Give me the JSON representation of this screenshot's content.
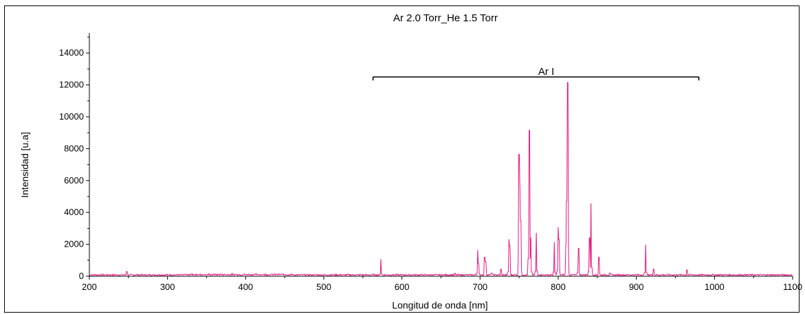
{
  "chart_data": {
    "type": "line",
    "title": "Ar 2.0 Torr_He 1.5 Torr",
    "xlabel": "Longitud de onda [nm]",
    "ylabel": "Intensidad [u.a]",
    "xlim": [
      200,
      1100
    ],
    "ylim": [
      0,
      15000
    ],
    "x_ticks": [
      200,
      300,
      400,
      500,
      600,
      700,
      800,
      900,
      1000,
      1100
    ],
    "y_ticks": [
      0,
      2000,
      4000,
      6000,
      8000,
      10000,
      12000,
      14000
    ],
    "grid": false,
    "line_color": "#e8177f",
    "annotation": {
      "text": "Ar I",
      "x_start": 563,
      "x_end": 980,
      "y": 12500
    },
    "series": [
      {
        "peaks": [
          {
            "x": 248,
            "y": 300
          },
          {
            "x": 573,
            "y": 1050
          },
          {
            "x": 668,
            "y": 180
          },
          {
            "x": 697,
            "y": 1650
          },
          {
            "x": 698,
            "y": 800
          },
          {
            "x": 706,
            "y": 1200
          },
          {
            "x": 707,
            "y": 900
          },
          {
            "x": 715,
            "y": 200
          },
          {
            "x": 727,
            "y": 450
          },
          {
            "x": 737,
            "y": 2300
          },
          {
            "x": 738,
            "y": 1900
          },
          {
            "x": 750,
            "y": 7650
          },
          {
            "x": 751,
            "y": 5700
          },
          {
            "x": 752,
            "y": 3500
          },
          {
            "x": 763,
            "y": 9150
          },
          {
            "x": 765,
            "y": 2400
          },
          {
            "x": 772,
            "y": 2700
          },
          {
            "x": 795,
            "y": 2150
          },
          {
            "x": 800,
            "y": 3050
          },
          {
            "x": 801,
            "y": 2300
          },
          {
            "x": 810,
            "y": 2000
          },
          {
            "x": 811,
            "y": 4700
          },
          {
            "x": 812,
            "y": 12150
          },
          {
            "x": 826,
            "y": 1750
          },
          {
            "x": 840,
            "y": 2400
          },
          {
            "x": 842,
            "y": 4550
          },
          {
            "x": 852,
            "y": 1200
          },
          {
            "x": 866,
            "y": 200
          },
          {
            "x": 912,
            "y": 1950
          },
          {
            "x": 922,
            "y": 450
          },
          {
            "x": 965,
            "y": 400
          },
          {
            "x": 1047,
            "y": 120
          }
        ]
      }
    ]
  }
}
